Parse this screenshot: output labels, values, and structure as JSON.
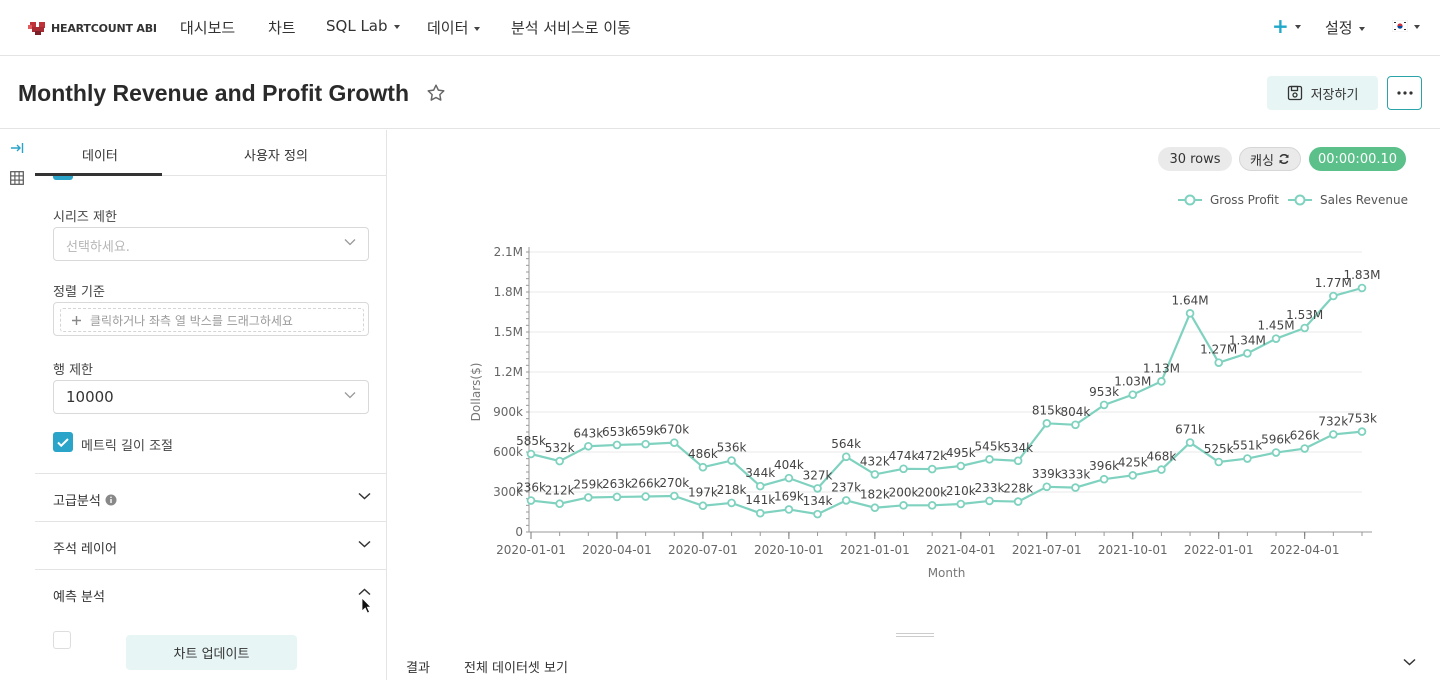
{
  "nav": {
    "logo_text": "HEARTCOUNT ABI",
    "items": [
      "대시보드",
      "차트",
      "SQL Lab",
      "데이터",
      "분석 서비스로 이동"
    ],
    "settings": "설정"
  },
  "header": {
    "title": "Monthly Revenue and Profit Growth",
    "save_label": "저장하기"
  },
  "panel": {
    "tabs": [
      "데이터",
      "사용자 정의"
    ],
    "series_limit_label": "시리즈 제한",
    "series_limit_placeholder": "선택하세요.",
    "sort_label": "정렬 기준",
    "sort_dropzone": "클릭하거나 좌측 열 박스를 드래그하세요",
    "row_limit_label": "행 제한",
    "row_limit_value": "10000",
    "metric_length_label": "메트릭 길이 조절",
    "sections": [
      "고급분석",
      "주석 레이어",
      "예측 분석"
    ],
    "update_button": "차트 업데이트"
  },
  "main": {
    "rows_badge": "30 rows",
    "cache_badge": "캐싱",
    "timer_badge": "00:00:00.10",
    "bottom_tabs": [
      "결과",
      "전체 데이터셋 보기"
    ]
  },
  "colors": {
    "accent": "#2aa4c9",
    "series": "#7fd2bf",
    "timer": "#5cc08a"
  },
  "chart_data": {
    "type": "line",
    "xlabel": "Month",
    "ylabel": "Dollars($)",
    "ylim": [
      0,
      2100000
    ],
    "yticks": [
      {
        "v": 0,
        "label": "0"
      },
      {
        "v": 300000,
        "label": "300k"
      },
      {
        "v": 600000,
        "label": "600k"
      },
      {
        "v": 900000,
        "label": "900k"
      },
      {
        "v": 1200000,
        "label": "1.2M"
      },
      {
        "v": 1500000,
        "label": "1.5M"
      },
      {
        "v": 1800000,
        "label": "1.8M"
      },
      {
        "v": 2100000,
        "label": "2.1M"
      }
    ],
    "xticks": [
      "2020-01-01",
      "2020-04-01",
      "2020-07-01",
      "2020-10-01",
      "2021-01-01",
      "2021-04-01",
      "2021-07-01",
      "2021-10-01",
      "2022-01-01",
      "2022-04-01"
    ],
    "x": [
      "2020-01-01",
      "2020-02-01",
      "2020-03-01",
      "2020-04-01",
      "2020-05-01",
      "2020-06-01",
      "2020-07-01",
      "2020-08-01",
      "2020-09-01",
      "2020-10-01",
      "2020-11-01",
      "2020-12-01",
      "2021-01-01",
      "2021-02-01",
      "2021-03-01",
      "2021-04-01",
      "2021-05-01",
      "2021-06-01",
      "2021-07-01",
      "2021-08-01",
      "2021-09-01",
      "2021-10-01",
      "2021-11-01",
      "2021-12-01",
      "2022-01-01",
      "2022-02-01",
      "2022-03-01",
      "2022-04-01",
      "2022-05-01",
      "2022-06-01"
    ],
    "legend_position": "top-right",
    "series": [
      {
        "name": "Sales Revenue",
        "values": [
          585000,
          532000,
          643000,
          653000,
          659000,
          670000,
          486000,
          536000,
          344000,
          404000,
          327000,
          564000,
          432000,
          474000,
          472000,
          495000,
          545000,
          534000,
          815000,
          804000,
          953000,
          1030000,
          1130000,
          1640000,
          1270000,
          1340000,
          1450000,
          1530000,
          1770000,
          1830000
        ],
        "labels": [
          "585k",
          "532k",
          "643k",
          "653k",
          "659k",
          "670k",
          "486k",
          "536k",
          "344k",
          "404k",
          "327k",
          "564k",
          "432k",
          "474k",
          "472k",
          "495k",
          "545k",
          "534k",
          "815k",
          "804k",
          "953k",
          "1.03M",
          "1.13M",
          "1.64M",
          "1.27M",
          "1.34M",
          "1.45M",
          "1.53M",
          "1.77M",
          "1.83M"
        ]
      },
      {
        "name": "Gross Profit",
        "values": [
          236000,
          212000,
          259000,
          263000,
          266000,
          270000,
          197000,
          218000,
          141000,
          169000,
          134000,
          237000,
          182000,
          200000,
          200000,
          210000,
          233000,
          228000,
          339000,
          333000,
          396000,
          425000,
          468000,
          671000,
          525000,
          551000,
          596000,
          626000,
          732000,
          753000
        ],
        "labels": [
          "236k",
          "212k",
          "259k",
          "263k",
          "266k",
          "270k",
          "197k",
          "218k",
          "141k",
          "169k",
          "134k",
          "237k",
          "182k",
          "200k",
          "200k",
          "210k",
          "233k",
          "228k",
          "339k",
          "333k",
          "396k",
          "425k",
          "468k",
          "671k",
          "525k",
          "551k",
          "596k",
          "626k",
          "732k",
          "753k"
        ]
      }
    ]
  }
}
